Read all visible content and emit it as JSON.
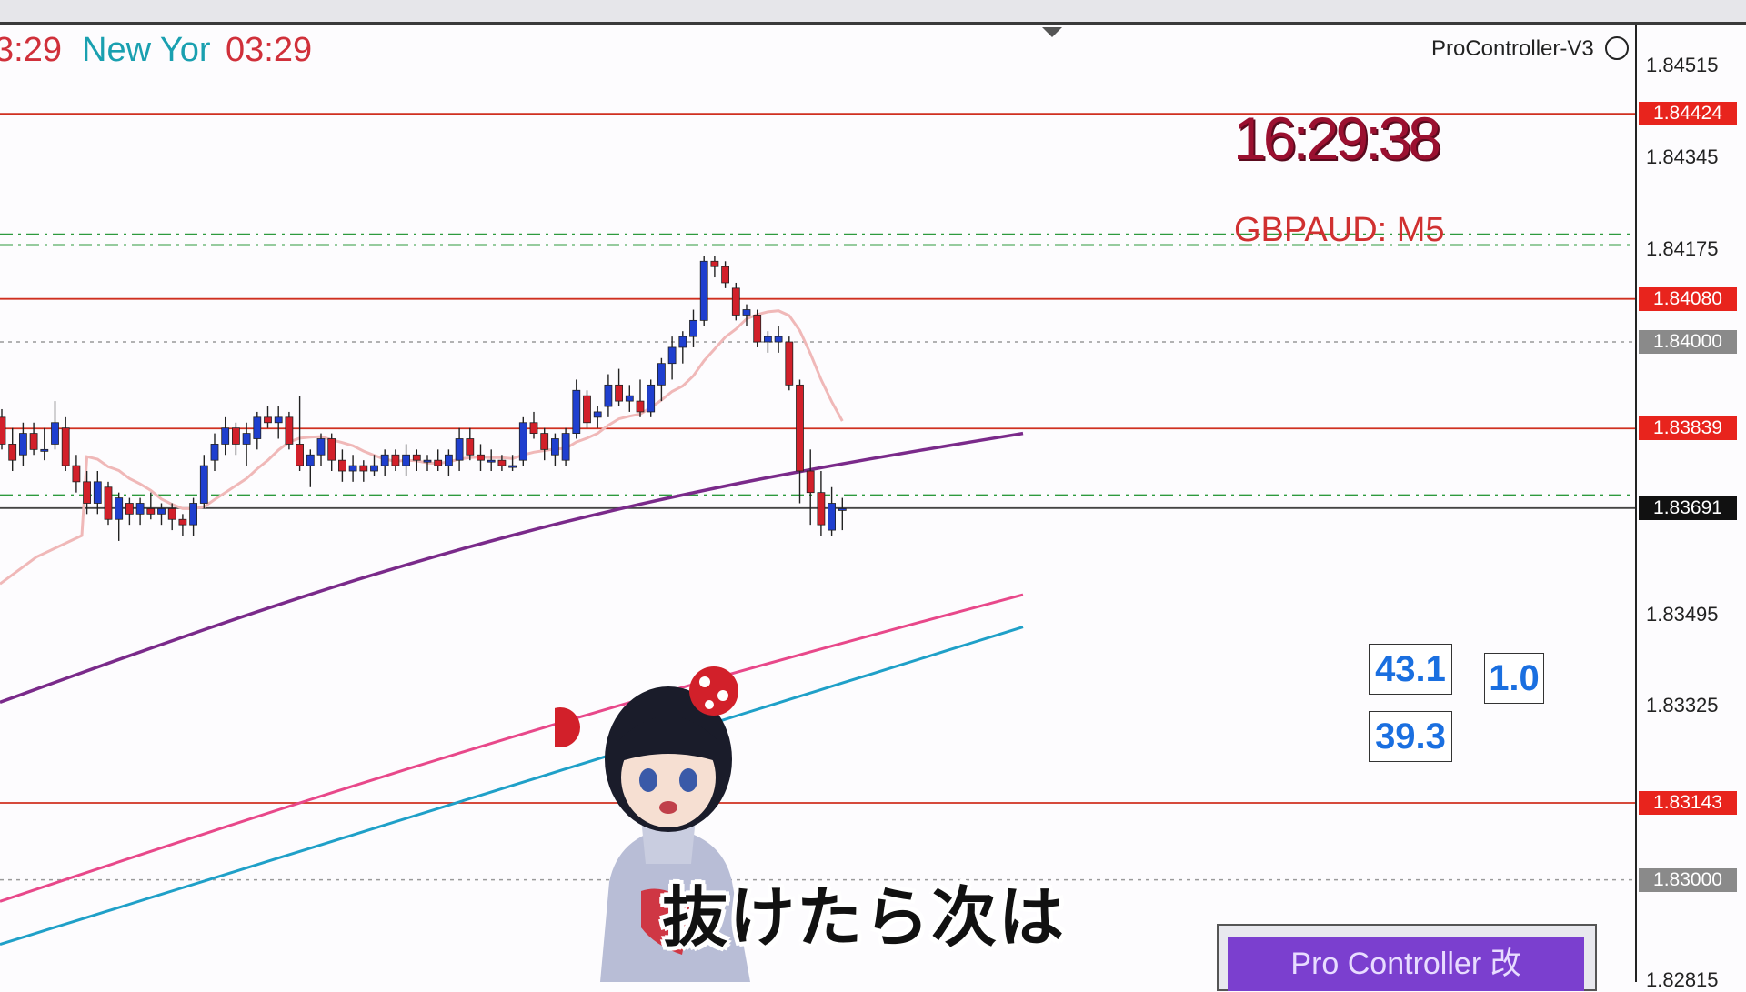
{
  "session_bar": {
    "time_left": "3:29",
    "city": "New Yor",
    "time_right": "03:29"
  },
  "indicator": {
    "name": "ProController-V3"
  },
  "clock": "16:29:38",
  "symbol": "GBPAUD: M5",
  "readouts": {
    "a": "43.1",
    "b": "39.3",
    "c": "1.0"
  },
  "panel_button": "Pro Controller 改",
  "subtitle": "抜けたら次は",
  "price_scale": [
    "1.84515",
    "1.84345",
    "1.84175",
    "1.83495",
    "1.83325",
    "1.82815"
  ],
  "price_tags": [
    {
      "price": "1.84424",
      "color": "#e8241d"
    },
    {
      "price": "1.84080",
      "color": "#e8241d"
    },
    {
      "price": "1.84000",
      "color": "#8a8a8a"
    },
    {
      "price": "1.83839",
      "color": "#e8241d"
    },
    {
      "price": "1.83691",
      "color": "#111111"
    },
    {
      "price": "1.83143",
      "color": "#e8241d"
    },
    {
      "price": "1.83000",
      "color": "#8a8a8a"
    }
  ],
  "colors": {
    "bull": "#1f3fcf",
    "bear": "#d2202a",
    "ma_fast": "#f0b8b8",
    "ma_mid": "#7a2a8a",
    "ma_slow": "#e8488a",
    "ma_long": "#1fa0c8",
    "level_red": "#d03020",
    "level_green": "#2e9a3e"
  },
  "chart_data": {
    "type": "candlestick",
    "symbol": "GBPAUD",
    "timeframe": "M5",
    "ylim": [
      1.8281,
      1.8459
    ],
    "candles": [
      [
        1.8386,
        1.83875,
        1.838,
        1.8381
      ],
      [
        1.8381,
        1.8384,
        1.8376,
        1.8378
      ],
      [
        1.8379,
        1.8385,
        1.8377,
        1.8383
      ],
      [
        1.8383,
        1.8385,
        1.8379,
        1.838
      ],
      [
        1.838,
        1.8384,
        1.8378,
        1.838
      ],
      [
        1.8381,
        1.8389,
        1.838,
        1.8385
      ],
      [
        1.8384,
        1.8386,
        1.8376,
        1.8377
      ],
      [
        1.8377,
        1.8379,
        1.8372,
        1.8374
      ],
      [
        1.8374,
        1.8376,
        1.8368,
        1.837
      ],
      [
        1.837,
        1.8376,
        1.8368,
        1.8374
      ],
      [
        1.8373,
        1.8374,
        1.8366,
        1.8367
      ],
      [
        1.8367,
        1.8372,
        1.8363,
        1.8371
      ],
      [
        1.837,
        1.8371,
        1.8366,
        1.8368
      ],
      [
        1.8368,
        1.8371,
        1.8366,
        1.837
      ],
      [
        1.8369,
        1.8372,
        1.8367,
        1.8368
      ],
      [
        1.8368,
        1.837,
        1.8366,
        1.8369
      ],
      [
        1.8369,
        1.837,
        1.8365,
        1.8367
      ],
      [
        1.8367,
        1.8368,
        1.8364,
        1.8366
      ],
      [
        1.8366,
        1.8371,
        1.8364,
        1.837
      ],
      [
        1.837,
        1.8379,
        1.8369,
        1.8377
      ],
      [
        1.8378,
        1.8383,
        1.8376,
        1.8381
      ],
      [
        1.8381,
        1.8386,
        1.8379,
        1.8384
      ],
      [
        1.8384,
        1.8385,
        1.8379,
        1.8381
      ],
      [
        1.8381,
        1.8385,
        1.8377,
        1.8383
      ],
      [
        1.8382,
        1.8387,
        1.838,
        1.8386
      ],
      [
        1.8386,
        1.8388,
        1.8384,
        1.8385
      ],
      [
        1.8385,
        1.8388,
        1.8382,
        1.8386
      ],
      [
        1.8386,
        1.8387,
        1.838,
        1.8381
      ],
      [
        1.8381,
        1.839,
        1.8376,
        1.8377
      ],
      [
        1.8377,
        1.838,
        1.8373,
        1.8379
      ],
      [
        1.8379,
        1.8383,
        1.8377,
        1.8382
      ],
      [
        1.8382,
        1.8383,
        1.8376,
        1.8378
      ],
      [
        1.8378,
        1.838,
        1.8374,
        1.8376
      ],
      [
        1.8376,
        1.8379,
        1.8374,
        1.8377
      ],
      [
        1.8377,
        1.8378,
        1.8374,
        1.8376
      ],
      [
        1.8376,
        1.8379,
        1.8375,
        1.8377
      ],
      [
        1.8377,
        1.838,
        1.8375,
        1.8379
      ],
      [
        1.8379,
        1.838,
        1.8376,
        1.8377
      ],
      [
        1.8377,
        1.8381,
        1.8375,
        1.8379
      ],
      [
        1.8379,
        1.838,
        1.8376,
        1.8378
      ],
      [
        1.8378,
        1.8379,
        1.8376,
        1.8378
      ],
      [
        1.8378,
        1.838,
        1.8376,
        1.8377
      ],
      [
        1.8377,
        1.838,
        1.8375,
        1.8379
      ],
      [
        1.8378,
        1.8384,
        1.8376,
        1.8382
      ],
      [
        1.8382,
        1.8384,
        1.8378,
        1.8379
      ],
      [
        1.8379,
        1.8381,
        1.8376,
        1.8378
      ],
      [
        1.8378,
        1.838,
        1.8376,
        1.8378
      ],
      [
        1.8378,
        1.8379,
        1.8376,
        1.8377
      ],
      [
        1.8377,
        1.8379,
        1.8376,
        1.8377
      ],
      [
        1.8378,
        1.8386,
        1.8377,
        1.8385
      ],
      [
        1.8385,
        1.8387,
        1.8382,
        1.8383
      ],
      [
        1.8383,
        1.8384,
        1.8378,
        1.838
      ],
      [
        1.8379,
        1.8383,
        1.8377,
        1.8382
      ],
      [
        1.8378,
        1.8384,
        1.8377,
        1.8383
      ],
      [
        1.8383,
        1.8393,
        1.8382,
        1.8391
      ],
      [
        1.839,
        1.8391,
        1.8384,
        1.8385
      ],
      [
        1.8386,
        1.8388,
        1.8384,
        1.8387
      ],
      [
        1.8388,
        1.8394,
        1.8386,
        1.8392
      ],
      [
        1.8392,
        1.8395,
        1.8388,
        1.8389
      ],
      [
        1.8389,
        1.8392,
        1.8387,
        1.839
      ],
      [
        1.8389,
        1.8393,
        1.8386,
        1.8387
      ],
      [
        1.8387,
        1.8393,
        1.8386,
        1.8392
      ],
      [
        1.8392,
        1.8397,
        1.8389,
        1.8396
      ],
      [
        1.8396,
        1.8401,
        1.8393,
        1.8399
      ],
      [
        1.8399,
        1.8402,
        1.8396,
        1.8401
      ],
      [
        1.8401,
        1.8406,
        1.8399,
        1.8404
      ],
      [
        1.8404,
        1.8416,
        1.8403,
        1.8415
      ],
      [
        1.8415,
        1.8416,
        1.8412,
        1.8414
      ],
      [
        1.8414,
        1.8415,
        1.841,
        1.8411
      ],
      [
        1.841,
        1.8411,
        1.8404,
        1.8405
      ],
      [
        1.8405,
        1.8407,
        1.8403,
        1.8406
      ],
      [
        1.8405,
        1.8406,
        1.8399,
        1.84
      ],
      [
        1.84,
        1.8402,
        1.8398,
        1.8401
      ],
      [
        1.84,
        1.8403,
        1.8398,
        1.8401
      ],
      [
        1.84,
        1.8401,
        1.8391,
        1.8392
      ],
      [
        1.8392,
        1.8393,
        1.837,
        1.8376
      ],
      [
        1.8376,
        1.838,
        1.8366,
        1.8372
      ],
      [
        1.8372,
        1.8376,
        1.8364,
        1.8366
      ],
      [
        1.8365,
        1.8373,
        1.8364,
        1.837
      ],
      [
        1.8369,
        1.8371,
        1.8365,
        1.8369
      ]
    ],
    "levels": [
      1.84424,
      1.8408,
      1.83839,
      1.83691,
      1.83143
    ],
    "dotted_levels": [
      1.84,
      1.83
    ]
  }
}
